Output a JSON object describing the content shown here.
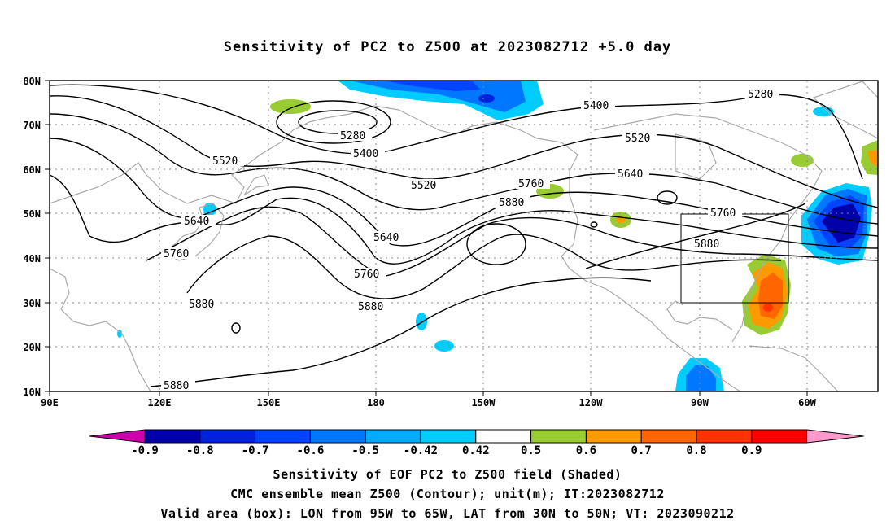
{
  "title": "Sensitivity of PC2 to Z500 at 2023082712 +5.0 day",
  "lat_labels": [
    "80N",
    "70N",
    "60N",
    "50N",
    "40N",
    "30N",
    "20N",
    "10N"
  ],
  "lon_labels": [
    "90E",
    "120E",
    "150E",
    "180",
    "150W",
    "120W",
    "90W",
    "60W"
  ],
  "contour_labels": [
    "5280",
    "5280",
    "5400",
    "5400",
    "5520",
    "5520",
    "5520",
    "5640",
    "5640",
    "5640",
    "5760",
    "5760",
    "5760",
    "5760",
    "5880",
    "5880",
    "5880",
    "5880",
    "5880"
  ],
  "colorbar": {
    "labels": [
      "-0.9",
      "-0.8",
      "-0.7",
      "-0.6",
      "-0.5",
      "-0.42",
      "0.42",
      "0.5",
      "0.6",
      "0.7",
      "0.8",
      "0.9"
    ],
    "colors": [
      "#cc00aa",
      "#0000aa",
      "#0022dd",
      "#0044ff",
      "#0077ff",
      "#00aaff",
      "#00ccff",
      "#ffffff",
      "#99cc33",
      "#ff9900",
      "#ff6600",
      "#ff3300",
      "#ff0000",
      "#ff99cc"
    ]
  },
  "captions": [
    "Sensitivity of EOF PC2 to Z500 field (Shaded)",
    "CMC ensemble mean Z500 (Contour); unit(m); IT:2023082712",
    "Valid area (box): LON from 95W to 65W, LAT from 30N to 50N; VT: 2023090212"
  ]
}
